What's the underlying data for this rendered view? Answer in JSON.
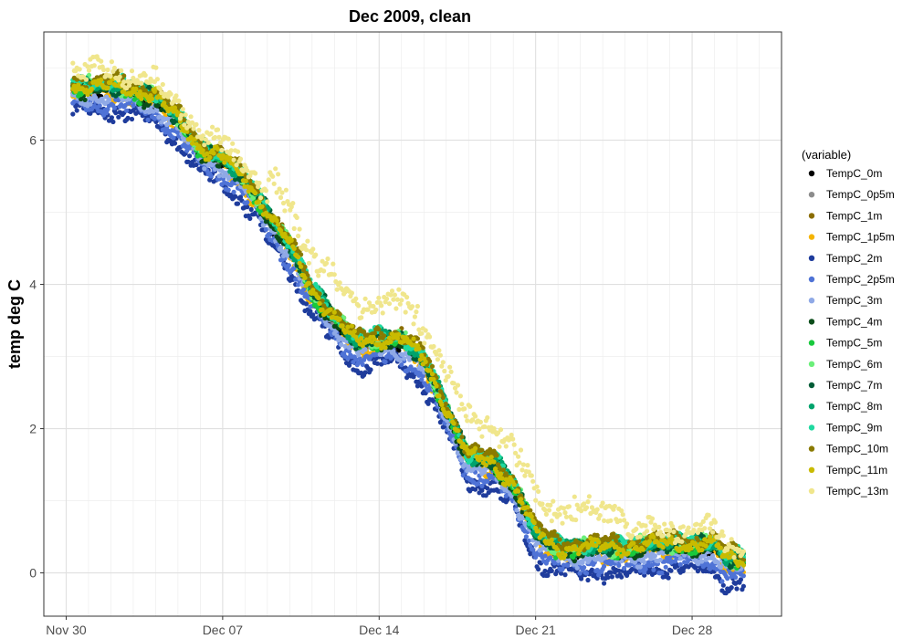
{
  "chart_data": {
    "type": "scatter",
    "title": "Dec 2009, clean",
    "xlabel": "",
    "ylabel": "temp deg C",
    "xlim": [
      "2009-11-29",
      "2010-01-01"
    ],
    "ylim": [
      -0.6,
      7.5
    ],
    "x_ticks": [
      {
        "date": "2009-11-30",
        "label": "Nov 30"
      },
      {
        "date": "2009-12-07",
        "label": "Dec 07"
      },
      {
        "date": "2009-12-14",
        "label": "Dec 14"
      },
      {
        "date": "2009-12-21",
        "label": "Dec 21"
      },
      {
        "date": "2009-12-28",
        "label": "Dec 28"
      }
    ],
    "y_ticks": [
      0,
      2,
      4,
      6
    ],
    "grid": true,
    "legend_title": "(variable)",
    "legend_position": "right",
    "series": [
      {
        "name": "TempC_0m",
        "color": "#000000",
        "offset": 0.0,
        "spread": 0.05
      },
      {
        "name": "TempC_0p5m",
        "color": "#8c8c8c",
        "offset": 0.02,
        "spread": 0.05
      },
      {
        "name": "TempC_1m",
        "color": "#8b6d00",
        "offset": 0.05,
        "spread": 0.05
      },
      {
        "name": "TempC_1p5m",
        "color": "#f5b400",
        "offset": -0.05,
        "spread": 0.05
      },
      {
        "name": "TempC_2m",
        "color": "#1f3c9c",
        "offset": -0.3,
        "spread": 0.08
      },
      {
        "name": "TempC_2p5m",
        "color": "#4f73d6",
        "offset": -0.2,
        "spread": 0.08
      },
      {
        "name": "TempC_3m",
        "color": "#8fa9e6",
        "offset": -0.1,
        "spread": 0.06
      },
      {
        "name": "TempC_4m",
        "color": "#0b4d1a",
        "offset": 0.0,
        "spread": 0.06
      },
      {
        "name": "TempC_5m",
        "color": "#18c93c",
        "offset": 0.03,
        "spread": 0.06
      },
      {
        "name": "TempC_6m",
        "color": "#6bef7a",
        "offset": 0.06,
        "spread": 0.05
      },
      {
        "name": "TempC_7m",
        "color": "#005c36",
        "offset": 0.06,
        "spread": 0.05
      },
      {
        "name": "TempC_8m",
        "color": "#00a36c",
        "offset": 0.08,
        "spread": 0.05
      },
      {
        "name": "TempC_9m",
        "color": "#1fd9a0",
        "offset": 0.1,
        "spread": 0.05
      },
      {
        "name": "TempC_10m",
        "color": "#8a7a00",
        "offset": 0.12,
        "spread": 0.06
      },
      {
        "name": "TempC_11m",
        "color": "#c9bb00",
        "offset": 0.05,
        "spread": 0.06
      },
      {
        "name": "TempC_13m",
        "color": "#f0e68c",
        "offset": 0.25,
        "spread": 0.12
      }
    ],
    "trend": [
      [
        0.5,
        6.9
      ],
      [
        1.0,
        6.75
      ],
      [
        1.5,
        6.7
      ],
      [
        2.0,
        6.7
      ],
      [
        3.0,
        6.7
      ],
      [
        4.0,
        6.65
      ],
      [
        5.0,
        6.55
      ],
      [
        6.0,
        6.25
      ],
      [
        7.0,
        5.85
      ],
      [
        8.0,
        5.7
      ],
      [
        9.0,
        5.4
      ],
      [
        10.0,
        4.95
      ],
      [
        11.0,
        4.5
      ],
      [
        12.0,
        3.85
      ],
      [
        13.0,
        3.5
      ],
      [
        14.0,
        3.15
      ],
      [
        15.0,
        3.2
      ],
      [
        16.0,
        3.2
      ],
      [
        17.0,
        2.9
      ],
      [
        18.0,
        2.25
      ],
      [
        19.0,
        1.55
      ],
      [
        20.0,
        1.5
      ],
      [
        21.0,
        1.2
      ],
      [
        22.0,
        0.5
      ],
      [
        23.0,
        0.3
      ],
      [
        24.0,
        0.3
      ],
      [
        25.0,
        0.3
      ],
      [
        26.0,
        0.3
      ],
      [
        27.0,
        0.35
      ],
      [
        28.0,
        0.35
      ],
      [
        29.0,
        0.35
      ],
      [
        30.0,
        0.35
      ],
      [
        30.5,
        0.15
      ]
    ]
  }
}
